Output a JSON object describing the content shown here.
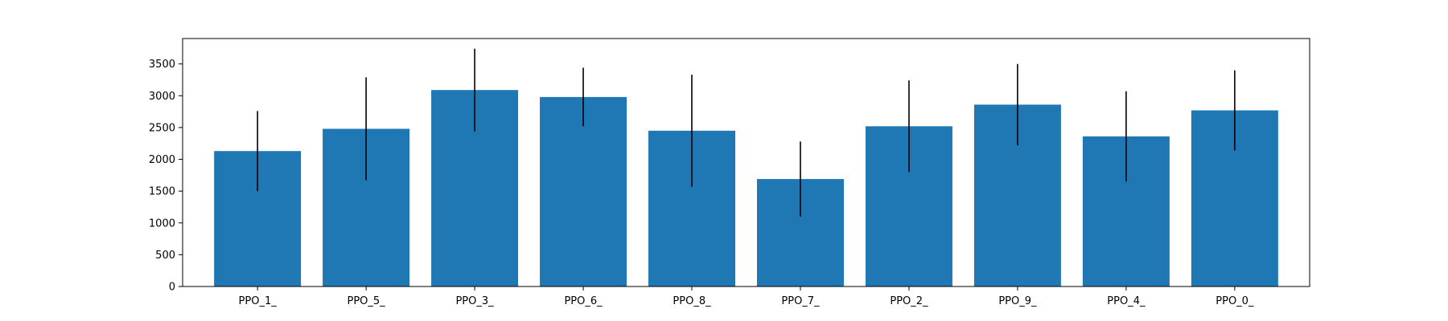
{
  "chart_data": {
    "type": "bar",
    "title": "",
    "xlabel": "",
    "ylabel": "",
    "categories": [
      "PPO_1_",
      "PPO_5_",
      "PPO_3_",
      "PPO_6_",
      "PPO_8_",
      "PPO_7_",
      "PPO_2_",
      "PPO_9_",
      "PPO_4_",
      "PPO_0_"
    ],
    "values": [
      2130,
      2480,
      3090,
      2980,
      2450,
      1690,
      2520,
      2860,
      2360,
      2770
    ],
    "error": [
      630,
      810,
      650,
      460,
      880,
      590,
      720,
      640,
      710,
      630
    ],
    "ylim": [
      0,
      3900
    ],
    "yticks": [
      0,
      500,
      1000,
      1500,
      2000,
      2500,
      3000,
      3500
    ],
    "grid": false,
    "legend": "none",
    "colors": {
      "bar": "#1f77b4",
      "error": "#000000",
      "axis": "#000000"
    }
  }
}
